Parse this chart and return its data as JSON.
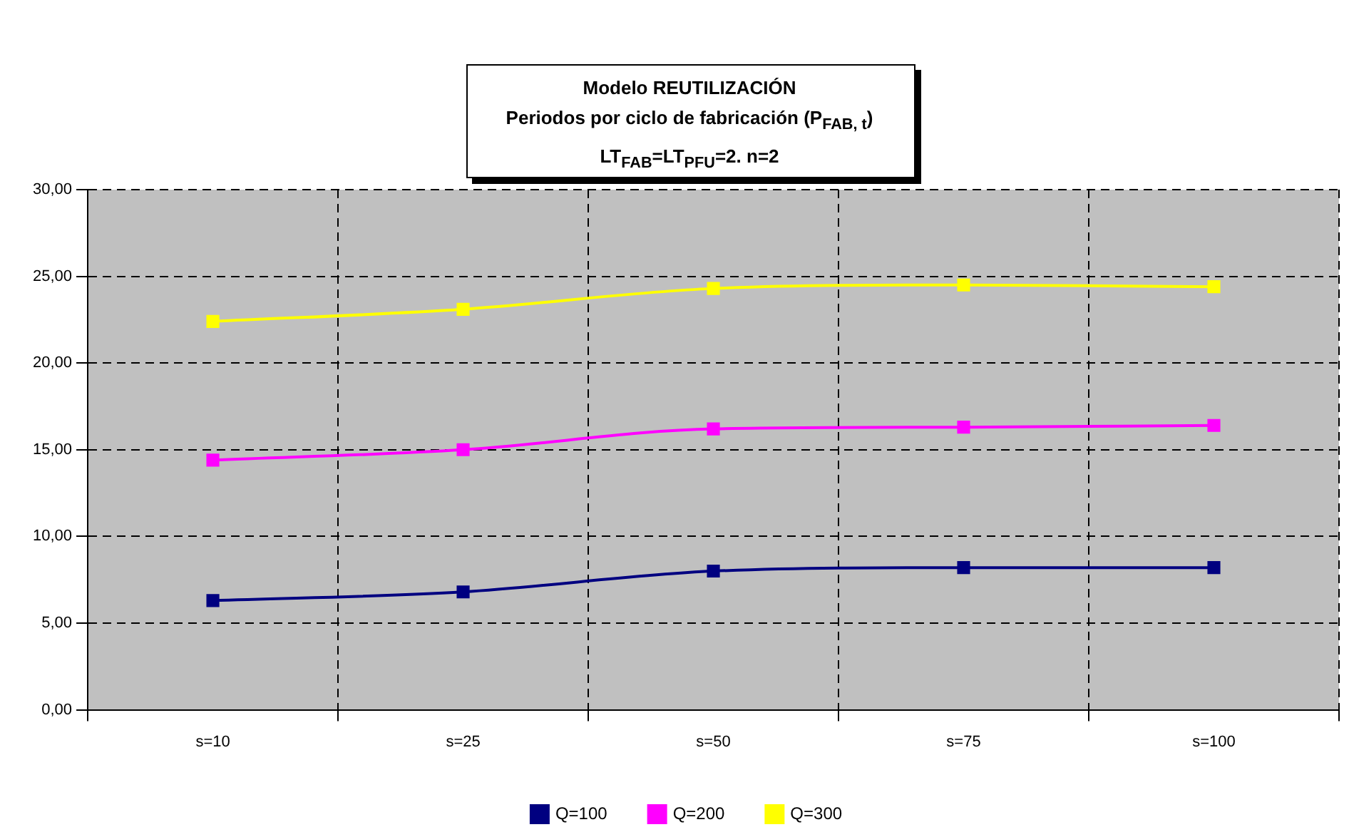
{
  "chart_data": {
    "type": "line",
    "title": "Modelo REUTILIZACIÓN\nPeriodos por ciclo de fabricación (P$_{FAB, t}$)\nLT$_{FAB}$=LT$_{PFU}$=2. n=2",
    "categories": [
      "s=10",
      "s=25",
      "s=50",
      "s=75",
      "s=100"
    ],
    "series": [
      {
        "name": "Q=100",
        "color": "#000080",
        "values": [
          6.3,
          6.8,
          8.0,
          8.2,
          8.2
        ]
      },
      {
        "name": "Q=200",
        "color": "#ff00ff",
        "values": [
          14.4,
          15.0,
          16.2,
          16.3,
          16.4
        ]
      },
      {
        "name": "Q=300",
        "color": "#ffff00",
        "values": [
          22.4,
          23.1,
          24.3,
          24.5,
          24.4
        ]
      }
    ],
    "ylim": [
      0,
      30
    ],
    "yticks": [
      {
        "value": 0,
        "label": "0,00"
      },
      {
        "value": 5,
        "label": "5,00"
      },
      {
        "value": 10,
        "label": "10,00"
      },
      {
        "value": 15,
        "label": "15,00"
      },
      {
        "value": 20,
        "label": "20,00"
      },
      {
        "value": 25,
        "label": "25,00"
      },
      {
        "value": 30,
        "label": "30,00"
      }
    ],
    "grid": true,
    "legend": "bottom",
    "marker": "square",
    "line_style": "solid"
  }
}
